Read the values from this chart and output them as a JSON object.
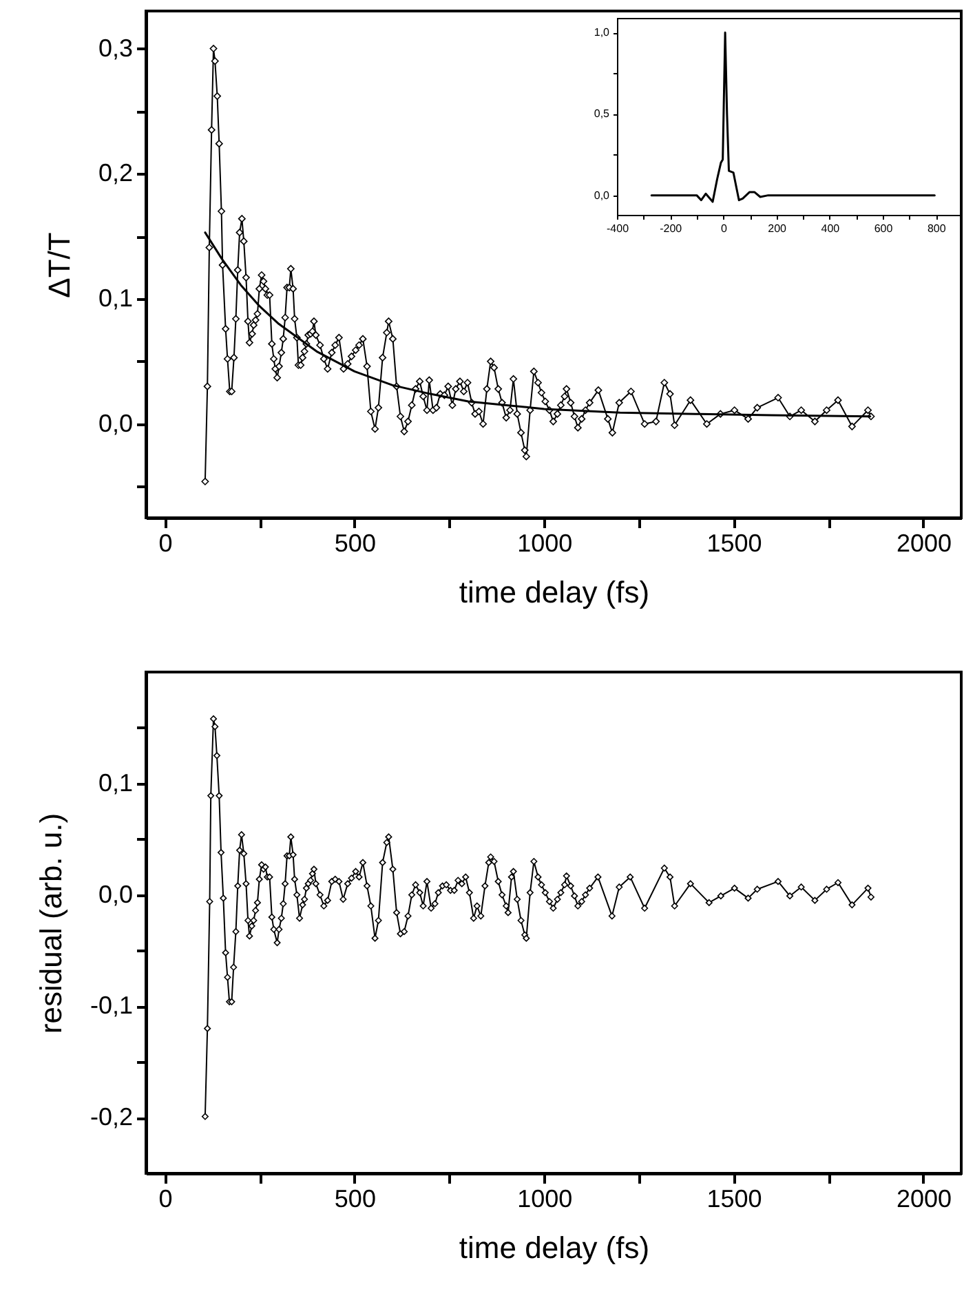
{
  "chart_data": [
    {
      "type": "line",
      "xlabel": "time delay (fs)",
      "ylabel": "ΔT/T",
      "marker": "diamond",
      "xlim": [
        -50,
        2100
      ],
      "ylim": [
        -0.075,
        0.33
      ],
      "xticks": [
        0,
        {
          "value": 250,
          "label": null
        },
        500,
        {
          "value": 750,
          "label": null
        },
        1000,
        {
          "value": 1250,
          "label": null
        },
        1500,
        {
          "value": 1750,
          "label": null
        },
        2000
      ],
      "yticks": [
        {
          "value": -0.05,
          "label": null
        },
        {
          "value": 0,
          "label": "0,0"
        },
        {
          "value": 0.05,
          "label": null
        },
        {
          "value": 0.1,
          "label": "0,1"
        },
        {
          "value": 0.15,
          "label": null
        },
        {
          "value": 0.2,
          "label": "0,2"
        },
        {
          "value": 0.25,
          "label": null
        },
        {
          "value": 0.3,
          "label": "0,3"
        }
      ],
      "series": [
        {
          "color": "#000000",
          "x": [
            106,
            112,
            117,
            123,
            128,
            132,
            138,
            143,
            149,
            152,
            160,
            165,
            171,
            176,
            182,
            187,
            192,
            197,
            203,
            208,
            214,
            219,
            223,
            230,
            234,
            239,
            244,
            249,
            255,
            260,
            265,
            270,
            276,
            282,
            287,
            291,
            296,
            301,
            307,
            312,
            317,
            322,
            328,
            332,
            338,
            342,
            348,
            352,
            358,
            363,
            368,
            373,
            378,
            384,
            389,
            393,
            398,
            409,
            419,
            429,
            440,
            449,
            459,
            471,
            482,
            492,
            503,
            512,
            522,
            533,
            543,
            554,
            563,
            574,
            585,
            590,
            601,
            611,
            621,
            631,
            641,
            651,
            661,
            672,
            681,
            691,
            697,
            707,
            716,
            726,
            737,
            747,
            758,
            767,
            778,
            788,
            798,
            809,
            818,
            828,
            839,
            849,
            859,
            868,
            879,
            889,
            900,
            910,
            919,
            929,
            939,
            949,
            953,
            963,
            973,
            984,
            993,
            1003,
            1014,
            1024,
            1035,
            1044,
            1054,
            1059,
            1070,
            1080,
            1089,
            1099,
            1109,
            1120,
            1143,
            1168,
            1180,
            1198,
            1229,
            1265,
            1295,
            1317,
            1332,
            1344,
            1386,
            1429,
            1465,
            1502,
            1538,
            1562,
            1617,
            1648,
            1678,
            1714,
            1745,
            1775,
            1812,
            1854,
            1862
          ],
          "values": [
            -0.046,
            0.03,
            0.141,
            0.235,
            0.3,
            0.29,
            0.262,
            0.224,
            0.17,
            0.127,
            0.076,
            0.052,
            0.026,
            0.026,
            0.053,
            0.084,
            0.123,
            0.153,
            0.164,
            0.146,
            0.117,
            0.082,
            0.065,
            0.072,
            0.079,
            0.083,
            0.088,
            0.108,
            0.119,
            0.114,
            0.108,
            0.103,
            0.103,
            0.064,
            0.052,
            0.044,
            0.037,
            0.046,
            0.057,
            0.068,
            0.085,
            0.109,
            0.109,
            0.124,
            0.108,
            0.084,
            0.069,
            0.047,
            0.047,
            0.053,
            0.058,
            0.064,
            0.071,
            0.072,
            0.074,
            0.082,
            0.071,
            0.063,
            0.052,
            0.044,
            0.057,
            0.063,
            0.069,
            0.044,
            0.048,
            0.054,
            0.059,
            0.063,
            0.068,
            0.046,
            0.01,
            -0.004,
            0.013,
            0.053,
            0.073,
            0.082,
            0.068,
            0.03,
            0.006,
            -0.006,
            0.002,
            0.015,
            0.028,
            0.034,
            0.022,
            0.011,
            0.035,
            0.011,
            0.013,
            0.024,
            0.023,
            0.03,
            0.015,
            0.028,
            0.034,
            0.026,
            0.033,
            0.017,
            0.008,
            0.01,
            0.0,
            0.028,
            0.05,
            0.045,
            0.028,
            0.017,
            0.005,
            0.011,
            0.036,
            0.008,
            -0.007,
            -0.021,
            -0.026,
            0.011,
            0.042,
            0.033,
            0.025,
            0.018,
            0.011,
            0.002,
            0.008,
            0.015,
            0.022,
            0.028,
            0.017,
            0.006,
            -0.003,
            0.004,
            0.011,
            0.017,
            0.027,
            0.004,
            -0.007,
            0.017,
            0.026,
            0.0,
            0.002,
            0.033,
            0.024,
            -0.001,
            0.019,
            0.0,
            0.008,
            0.011,
            0.004,
            0.013,
            0.021,
            0.006,
            0.011,
            0.002,
            0.011,
            0.019,
            -0.002,
            0.011,
            0.006
          ]
        },
        {
          "type": "line",
          "marker": "none",
          "color": "#000000",
          "x": [
            106,
            150,
            200,
            250,
            300,
            400,
            500,
            600,
            700,
            800,
            900,
            1000,
            1200,
            1400,
            1600,
            1860
          ],
          "values": [
            0.153,
            0.132,
            0.111,
            0.094,
            0.08,
            0.058,
            0.042,
            0.031,
            0.024,
            0.018,
            0.015,
            0.012,
            0.009,
            0.008,
            0.007,
            0.006
          ]
        }
      ]
    },
    {
      "type": "line",
      "marker": "none",
      "xlim": [
        -400,
        890
      ],
      "ylim": [
        -0.12,
        1.09
      ],
      "xticks": [
        -400,
        {
          "value": -300,
          "label": null
        },
        -200,
        {
          "value": -100,
          "label": null
        },
        0,
        {
          "value": 100,
          "label": null
        },
        200,
        {
          "value": 300,
          "label": null
        },
        400,
        {
          "value": 500,
          "label": null
        },
        600,
        {
          "value": 700,
          "label": null
        },
        800
      ],
      "yticks": [
        {
          "value": 0,
          "label": "0,0"
        },
        {
          "value": 0.25,
          "label": null
        },
        {
          "value": 0.5,
          "label": "0,5"
        },
        {
          "value": 0.75,
          "label": null
        },
        {
          "value": 1,
          "label": "1,0"
        }
      ],
      "series": [
        {
          "color": "#000000",
          "x": [
            -270,
            -200,
            -150,
            -100,
            -83,
            -66,
            -40,
            -23,
            -9,
            -2,
            7,
            14,
            21,
            38,
            49,
            59,
            73,
            99,
            117,
            139,
            169,
            300,
            500,
            650,
            795
          ],
          "values": [
            0,
            0,
            0,
            0,
            -0.03,
            0.01,
            -0.04,
            0.1,
            0.2,
            0.22,
            1.0,
            0.5,
            0.15,
            0.14,
            0.05,
            -0.03,
            -0.02,
            0.02,
            0.02,
            -0.01,
            0,
            0,
            0,
            0,
            0
          ]
        }
      ]
    },
    {
      "type": "line",
      "xlabel": "time delay (fs)",
      "ylabel": "residual (arb. u.)",
      "marker": "diamond",
      "xlim": [
        -50,
        2100
      ],
      "ylim": [
        -0.25,
        0.2
      ],
      "xticks": [
        0,
        {
          "value": 250,
          "label": null
        },
        500,
        {
          "value": 750,
          "label": null
        },
        1000,
        {
          "value": 1250,
          "label": null
        },
        1500,
        {
          "value": 1750,
          "label": null
        },
        2000
      ],
      "yticks": [
        {
          "value": -0.2,
          "label": "-0,2"
        },
        {
          "value": -0.15,
          "label": null
        },
        {
          "value": -0.1,
          "label": "-0,1"
        },
        {
          "value": -0.05,
          "label": null
        },
        {
          "value": 0,
          "label": "0,0"
        },
        {
          "value": 0.05,
          "label": null
        },
        {
          "value": 0.1,
          "label": "0,1"
        },
        {
          "value": 0.15,
          "label": null
        }
      ],
      "series": [
        {
          "color": "#000000",
          "x": [
            106,
            112,
            118,
            121,
            128,
            132,
            137,
            143,
            148,
            154,
            160,
            165,
            170,
            176,
            181,
            187,
            192,
            197,
            202,
            208,
            214,
            219,
            223,
            229,
            234,
            239,
            244,
            249,
            255,
            260,
            265,
            270,
            276,
            282,
            287,
            296,
            301,
            307,
            312,
            317,
            322,
            328,
            332,
            338,
            342,
            348,
            355,
            363,
            368,
            373,
            378,
            384,
            389,
            393,
            398,
            409,
            419,
            429,
            440,
            449,
            459,
            470,
            482,
            492,
            503,
            512,
            522,
            533,
            543,
            554,
            563,
            574,
            585,
            590,
            601,
            611,
            621,
            631,
            641,
            651,
            661,
            672,
            681,
            691,
            702,
            712,
            721,
            732,
            742,
            753,
            763,
            773,
            783,
            793,
            803,
            814,
            823,
            833,
            844,
            854,
            859,
            868,
            879,
            889,
            900,
            905,
            914,
            919,
            929,
            939,
            949,
            953,
            963,
            973,
            984,
            993,
            1003,
            1014,
            1024,
            1035,
            1044,
            1054,
            1059,
            1070,
            1080,
            1089,
            1099,
            1109,
            1120,
            1142,
            1179,
            1198,
            1227,
            1265,
            1317,
            1332,
            1344,
            1386,
            1435,
            1466,
            1502,
            1538,
            1562,
            1617,
            1648,
            1678,
            1714,
            1745,
            1775,
            1812,
            1854,
            1862
          ],
          "values": [
            -0.199,
            -0.12,
            -0.006,
            0.089,
            0.158,
            0.151,
            0.125,
            0.089,
            0.038,
            -0.003,
            -0.052,
            -0.074,
            -0.096,
            -0.096,
            -0.065,
            -0.033,
            0.008,
            0.04,
            0.054,
            0.037,
            0.01,
            -0.023,
            -0.037,
            -0.028,
            -0.023,
            -0.014,
            -0.007,
            0.014,
            0.027,
            0.023,
            0.025,
            0.016,
            0.016,
            -0.02,
            -0.031,
            -0.043,
            -0.031,
            -0.021,
            -0.008,
            0.01,
            0.035,
            0.035,
            0.052,
            0.036,
            0.014,
            0.0,
            -0.021,
            -0.009,
            -0.004,
            0.006,
            0.01,
            0.013,
            0.019,
            0.023,
            0.01,
            0.0,
            -0.01,
            -0.005,
            0.012,
            0.014,
            0.012,
            -0.004,
            0.01,
            0.015,
            0.021,
            0.016,
            0.029,
            0.008,
            -0.01,
            -0.039,
            -0.023,
            0.029,
            0.047,
            0.052,
            0.023,
            -0.016,
            -0.035,
            -0.033,
            -0.019,
            0.0,
            0.009,
            0.002,
            -0.01,
            0.012,
            -0.012,
            -0.008,
            0.002,
            0.008,
            0.009,
            0.004,
            0.004,
            0.013,
            0.01,
            0.016,
            0.002,
            -0.021,
            -0.01,
            -0.019,
            0.008,
            0.029,
            0.034,
            0.03,
            0.012,
            0.0,
            -0.01,
            -0.016,
            0.016,
            0.021,
            -0.004,
            -0.023,
            -0.036,
            -0.039,
            0.002,
            0.03,
            0.016,
            0.009,
            0.002,
            -0.006,
            -0.012,
            -0.004,
            0.002,
            0.009,
            0.017,
            0.008,
            -0.001,
            -0.01,
            -0.006,
            0.0,
            0.006,
            0.016,
            -0.019,
            0.007,
            0.016,
            -0.012,
            0.024,
            0.016,
            -0.01,
            0.01,
            -0.007,
            -0.001,
            0.006,
            -0.003,
            0.005,
            0.012,
            -0.001,
            0.007,
            -0.005,
            0.005,
            0.011,
            -0.009,
            0.006,
            -0.002
          ]
        }
      ]
    }
  ]
}
